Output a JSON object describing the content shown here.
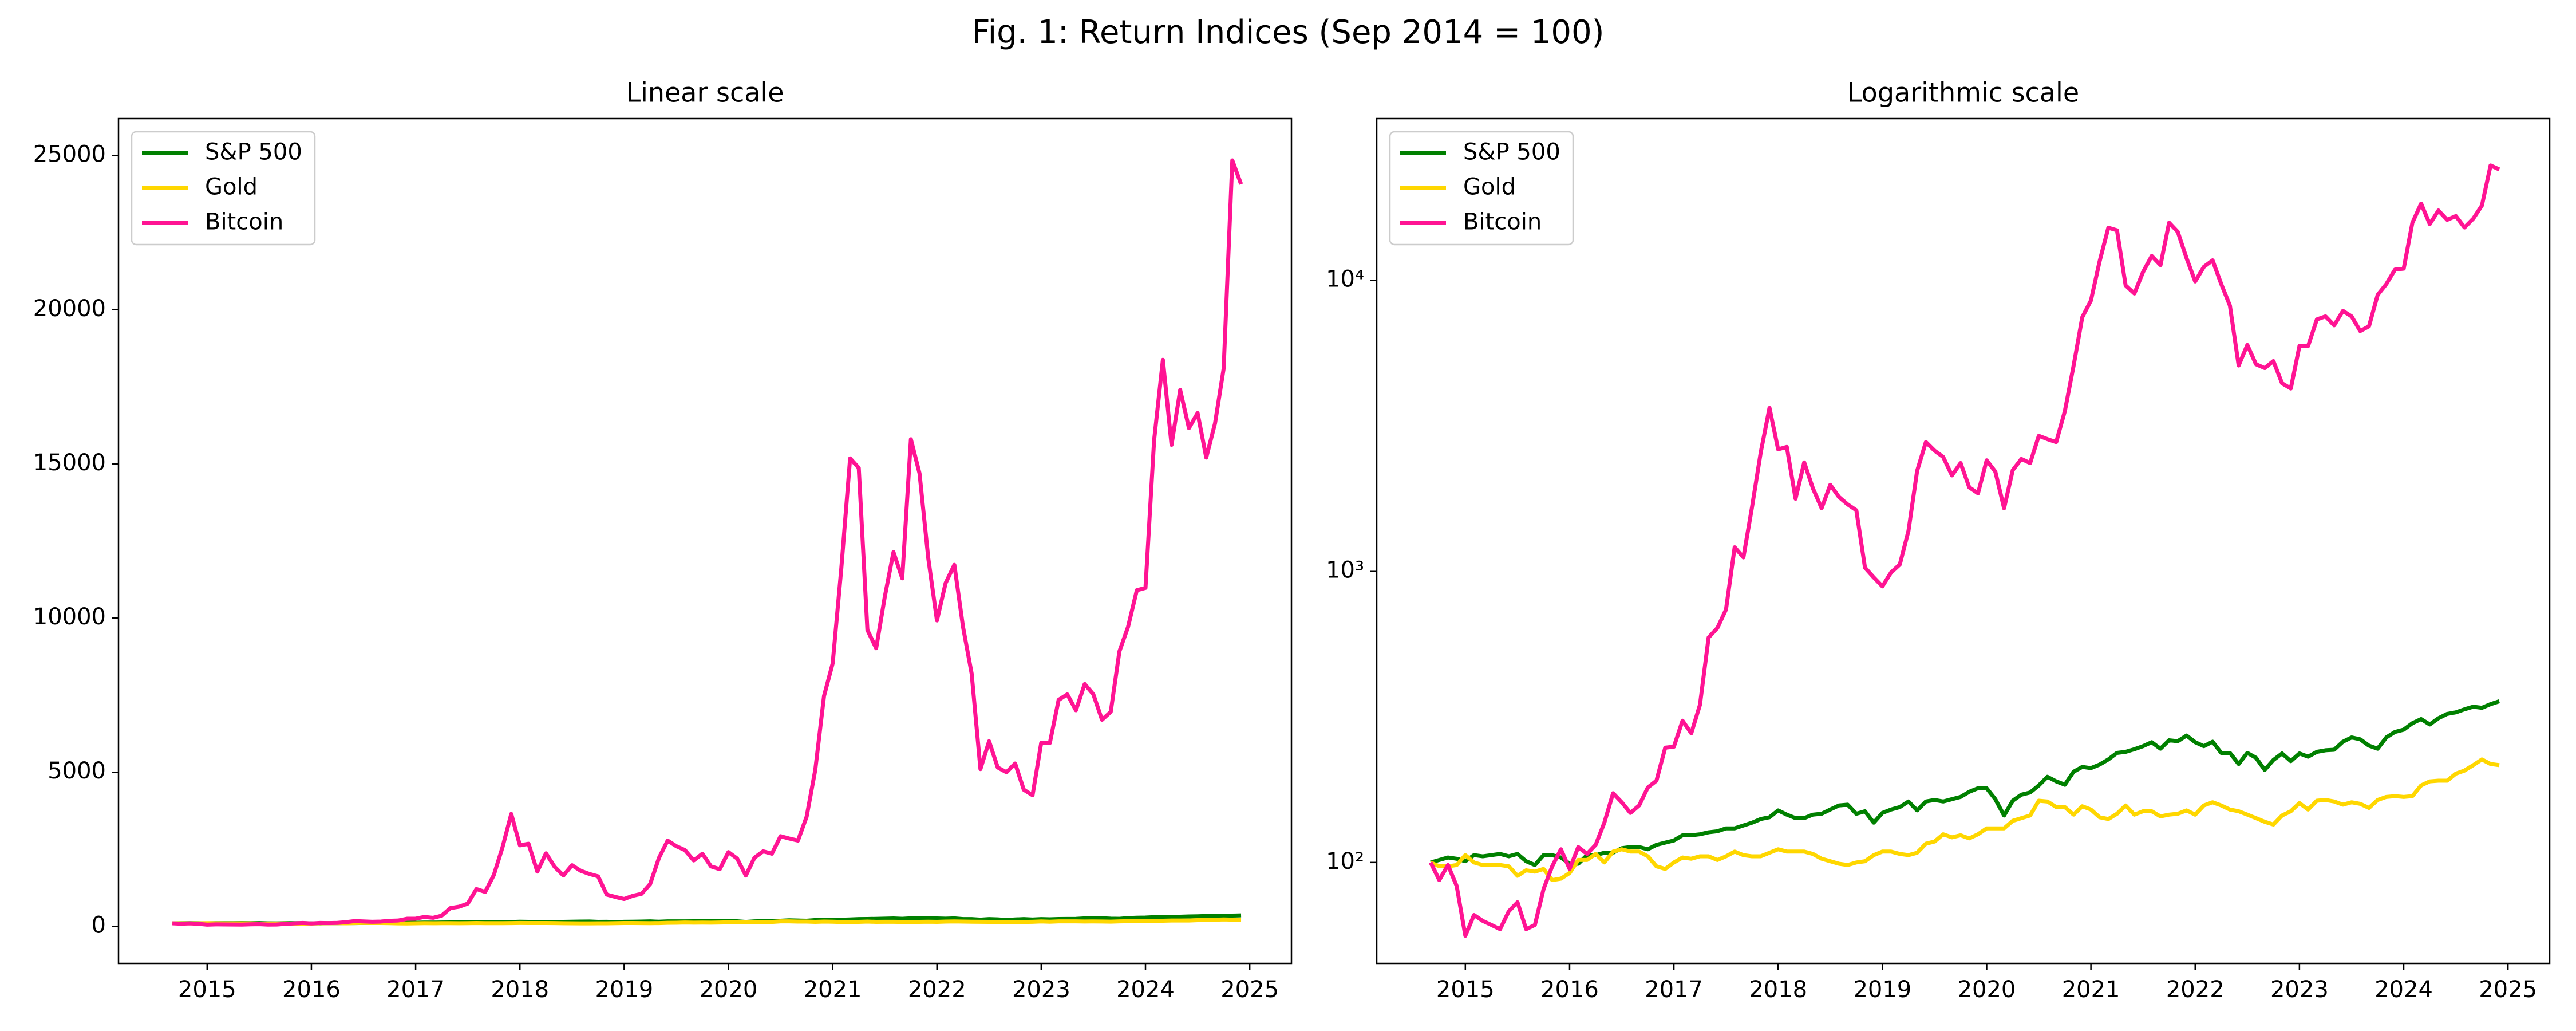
{
  "title": "Fig. 1: Return Indices (Sep 2014 = 100)",
  "chart_data": [
    {
      "type": "line",
      "title": "Linear scale",
      "log_scale": false,
      "legend": "upper left",
      "x": [
        2014.667,
        2014.75,
        2014.833,
        2014.917,
        2015,
        2015.083,
        2015.167,
        2015.25,
        2015.333,
        2015.417,
        2015.5,
        2015.583,
        2015.667,
        2015.75,
        2015.833,
        2015.917,
        2016,
        2016.083,
        2016.167,
        2016.25,
        2016.333,
        2016.417,
        2016.5,
        2016.583,
        2016.667,
        2016.75,
        2016.833,
        2016.917,
        2017,
        2017.083,
        2017.167,
        2017.25,
        2017.333,
        2017.417,
        2017.5,
        2017.583,
        2017.667,
        2017.75,
        2017.833,
        2017.917,
        2018,
        2018.083,
        2018.167,
        2018.25,
        2018.333,
        2018.417,
        2018.5,
        2018.583,
        2018.667,
        2018.75,
        2018.833,
        2018.917,
        2019,
        2019.083,
        2019.167,
        2019.25,
        2019.333,
        2019.417,
        2019.5,
        2019.583,
        2019.667,
        2019.75,
        2019.833,
        2019.917,
        2020,
        2020.083,
        2020.167,
        2020.25,
        2020.333,
        2020.417,
        2020.5,
        2020.583,
        2020.667,
        2020.75,
        2020.833,
        2020.917,
        2021,
        2021.083,
        2021.167,
        2021.25,
        2021.333,
        2021.417,
        2021.5,
        2021.583,
        2021.667,
        2021.75,
        2021.833,
        2021.917,
        2022,
        2022.083,
        2022.167,
        2022.25,
        2022.333,
        2022.417,
        2022.5,
        2022.583,
        2022.667,
        2022.75,
        2022.833,
        2022.917,
        2023,
        2023.083,
        2023.167,
        2023.25,
        2023.333,
        2023.417,
        2023.5,
        2023.583,
        2023.667,
        2023.75,
        2023.833,
        2023.917,
        2024,
        2024.083,
        2024.167,
        2024.25,
        2024.333,
        2024.417,
        2024.5,
        2024.583,
        2024.667,
        2024.75,
        2024.833,
        2024.917
      ],
      "xlim": [
        2014.15,
        2025.4
      ],
      "xticks": [
        2015,
        2016,
        2017,
        2018,
        2019,
        2020,
        2021,
        2022,
        2023,
        2024,
        2025
      ],
      "ylim": [
        -1200,
        26200
      ],
      "yticks": [
        0,
        5000,
        10000,
        15000,
        20000,
        25000
      ],
      "series": [
        {
          "name": "S&P 500",
          "color": "#008000",
          "values": [
            100,
            102,
            104,
            103,
            101,
            106,
            105,
            106,
            107,
            105,
            107,
            101,
            98,
            106,
            106,
            104,
            99,
            99,
            106,
            106,
            108,
            108,
            112,
            113,
            113,
            111,
            115,
            117,
            119,
            124,
            124,
            125,
            127,
            128,
            131,
            131,
            134,
            137,
            141,
            143,
            151,
            146,
            142,
            142,
            146,
            147,
            152,
            157,
            158,
            147,
            150,
            137,
            148,
            152,
            155,
            162,
            151,
            162,
            164,
            162,
            165,
            168,
            175,
            180,
            180,
            165,
            145,
            163,
            171,
            174,
            184,
            197,
            190,
            185,
            205,
            213,
            211,
            217,
            226,
            238,
            240,
            245,
            251,
            259,
            246,
            263,
            261,
            273,
            259,
            251,
            260,
            238,
            238,
            218,
            238,
            229,
            208,
            225,
            237,
            223,
            237,
            231,
            240,
            243,
            244,
            260,
            269,
            265,
            252,
            246,
            269,
            281,
            286,
            301,
            311,
            298,
            313,
            324,
            328,
            336,
            343,
            340,
            350,
            358
          ]
        },
        {
          "name": "Gold",
          "color": "#FFD700",
          "values": [
            100,
            97,
            97,
            98,
            106,
            100,
            98,
            98,
            98,
            97,
            90,
            94,
            93,
            95,
            87,
            88,
            92,
            102,
            102,
            107,
            100,
            109,
            111,
            109,
            109,
            105,
            97,
            95,
            100,
            104,
            103,
            105,
            105,
            102,
            105,
            109,
            106,
            105,
            105,
            108,
            111,
            109,
            109,
            109,
            107,
            103,
            101,
            99,
            98,
            100,
            101,
            106,
            109,
            109,
            107,
            106,
            108,
            116,
            118,
            125,
            122,
            124,
            121,
            125,
            131,
            131,
            131,
            139,
            142,
            145,
            163,
            162,
            155,
            155,
            146,
            156,
            152,
            143,
            141,
            147,
            157,
            146,
            150,
            150,
            144,
            146,
            147,
            151,
            146,
            157,
            161,
            157,
            152,
            150,
            146,
            142,
            138,
            135,
            145,
            150,
            160,
            152,
            163,
            164,
            162,
            158,
            161,
            159,
            154,
            164,
            168,
            169,
            168,
            169,
            184,
            190,
            191,
            191,
            202,
            207,
            216,
            226,
            218,
            216
          ]
        },
        {
          "name": "Bitcoin",
          "color": "#FF1493",
          "values": [
            100,
            87,
            98,
            83,
            56,
            66,
            63,
            61,
            59,
            68,
            73,
            59,
            61,
            81,
            97,
            111,
            95,
            113,
            107,
            115,
            137,
            173,
            161,
            148,
            157,
            181,
            191,
            248,
            250,
            307,
            278,
            348,
            593,
            639,
            740,
            1211,
            1118,
            1668,
            2564,
            3647,
            2629,
            2680,
            1778,
            2371,
            1933,
            1650,
            1985,
            1804,
            1700,
            1623,
            1031,
            954,
            889,
            992,
            1057,
            1379,
            2216,
            2784,
            2603,
            2474,
            2139,
            2358,
            1946,
            1856,
            2410,
            2204,
            1649,
            2229,
            2436,
            2358,
            2925,
            2850,
            2784,
            3557,
            5077,
            7474,
            8531,
            11624,
            15180,
            14871,
            9613,
            9021,
            10696,
            12139,
            11289,
            15799,
            14691,
            11933,
            9923,
            11134,
            11727,
            9716,
            8196,
            5103,
            6005,
            5155,
            5000,
            5284,
            4433,
            4253,
            5954,
            5954,
            7345,
            7526,
            7010,
            7861,
            7526,
            6701,
            6959,
            8918,
            9716,
            10902,
            10979,
            15773,
            18376,
            15619,
            17397,
            16160,
            16649,
            15206,
            16314,
            18093,
            24845,
            24072
          ]
        }
      ]
    },
    {
      "type": "line",
      "title": "Logarithmic scale",
      "log_scale": true,
      "legend": "upper left",
      "x": [
        2014.667,
        2014.75,
        2014.833,
        2014.917,
        2015,
        2015.083,
        2015.167,
        2015.25,
        2015.333,
        2015.417,
        2015.5,
        2015.583,
        2015.667,
        2015.75,
        2015.833,
        2015.917,
        2016,
        2016.083,
        2016.167,
        2016.25,
        2016.333,
        2016.417,
        2016.5,
        2016.583,
        2016.667,
        2016.75,
        2016.833,
        2016.917,
        2017,
        2017.083,
        2017.167,
        2017.25,
        2017.333,
        2017.417,
        2017.5,
        2017.583,
        2017.667,
        2017.75,
        2017.833,
        2017.917,
        2018,
        2018.083,
        2018.167,
        2018.25,
        2018.333,
        2018.417,
        2018.5,
        2018.583,
        2018.667,
        2018.75,
        2018.833,
        2018.917,
        2019,
        2019.083,
        2019.167,
        2019.25,
        2019.333,
        2019.417,
        2019.5,
        2019.583,
        2019.667,
        2019.75,
        2019.833,
        2019.917,
        2020,
        2020.083,
        2020.167,
        2020.25,
        2020.333,
        2020.417,
        2020.5,
        2020.583,
        2020.667,
        2020.75,
        2020.833,
        2020.917,
        2021,
        2021.083,
        2021.167,
        2021.25,
        2021.333,
        2021.417,
        2021.5,
        2021.583,
        2021.667,
        2021.75,
        2021.833,
        2021.917,
        2022,
        2022.083,
        2022.167,
        2022.25,
        2022.333,
        2022.417,
        2022.5,
        2022.583,
        2022.667,
        2022.75,
        2022.833,
        2022.917,
        2023,
        2023.083,
        2023.167,
        2023.25,
        2023.333,
        2023.417,
        2023.5,
        2023.583,
        2023.667,
        2023.75,
        2023.833,
        2023.917,
        2024,
        2024.083,
        2024.167,
        2024.25,
        2024.333,
        2024.417,
        2024.5,
        2024.583,
        2024.667,
        2024.75,
        2024.833,
        2024.917
      ],
      "xlim": [
        2014.15,
        2025.4
      ],
      "xticks": [
        2015,
        2016,
        2017,
        2018,
        2019,
        2020,
        2021,
        2022,
        2023,
        2024,
        2025
      ],
      "ylim": [
        45,
        36000
      ],
      "yticks": [
        {
          "value": 100,
          "label": "10²"
        },
        {
          "value": 1000,
          "label": "10³"
        },
        {
          "value": 10000,
          "label": "10⁴"
        }
      ],
      "series": [
        {
          "name": "S&P 500",
          "color": "#008000",
          "values": [
            100,
            102,
            104,
            103,
            101,
            106,
            105,
            106,
            107,
            105,
            107,
            101,
            98,
            106,
            106,
            104,
            99,
            99,
            106,
            106,
            108,
            108,
            112,
            113,
            113,
            111,
            115,
            117,
            119,
            124,
            124,
            125,
            127,
            128,
            131,
            131,
            134,
            137,
            141,
            143,
            151,
            146,
            142,
            142,
            146,
            147,
            152,
            157,
            158,
            147,
            150,
            137,
            148,
            152,
            155,
            162,
            151,
            162,
            164,
            162,
            165,
            168,
            175,
            180,
            180,
            165,
            145,
            163,
            171,
            174,
            184,
            197,
            190,
            185,
            205,
            213,
            211,
            217,
            226,
            238,
            240,
            245,
            251,
            259,
            246,
            263,
            261,
            273,
            259,
            251,
            260,
            238,
            238,
            218,
            238,
            229,
            208,
            225,
            237,
            223,
            237,
            231,
            240,
            243,
            244,
            260,
            269,
            265,
            252,
            246,
            269,
            281,
            286,
            301,
            311,
            298,
            313,
            324,
            328,
            336,
            343,
            340,
            350,
            358
          ]
        },
        {
          "name": "Gold",
          "color": "#FFD700",
          "values": [
            100,
            97,
            97,
            98,
            106,
            100,
            98,
            98,
            98,
            97,
            90,
            94,
            93,
            95,
            87,
            88,
            92,
            102,
            102,
            107,
            100,
            109,
            111,
            109,
            109,
            105,
            97,
            95,
            100,
            104,
            103,
            105,
            105,
            102,
            105,
            109,
            106,
            105,
            105,
            108,
            111,
            109,
            109,
            109,
            107,
            103,
            101,
            99,
            98,
            100,
            101,
            106,
            109,
            109,
            107,
            106,
            108,
            116,
            118,
            125,
            122,
            124,
            121,
            125,
            131,
            131,
            131,
            139,
            142,
            145,
            163,
            162,
            155,
            155,
            146,
            156,
            152,
            143,
            141,
            147,
            157,
            146,
            150,
            150,
            144,
            146,
            147,
            151,
            146,
            157,
            161,
            157,
            152,
            150,
            146,
            142,
            138,
            135,
            145,
            150,
            160,
            152,
            163,
            164,
            162,
            158,
            161,
            159,
            154,
            164,
            168,
            169,
            168,
            169,
            184,
            190,
            191,
            191,
            202,
            207,
            216,
            226,
            218,
            216
          ]
        },
        {
          "name": "Bitcoin",
          "color": "#FF1493",
          "values": [
            100,
            87,
            98,
            83,
            56,
            66,
            63,
            61,
            59,
            68,
            73,
            59,
            61,
            81,
            97,
            111,
            95,
            113,
            107,
            115,
            137,
            173,
            161,
            148,
            157,
            181,
            191,
            248,
            250,
            307,
            278,
            348,
            593,
            639,
            740,
            1211,
            1118,
            1668,
            2564,
            3647,
            2629,
            2680,
            1778,
            2371,
            1933,
            1650,
            1985,
            1804,
            1700,
            1623,
            1031,
            954,
            889,
            992,
            1057,
            1379,
            2216,
            2784,
            2603,
            2474,
            2139,
            2358,
            1946,
            1856,
            2410,
            2204,
            1649,
            2229,
            2436,
            2358,
            2925,
            2850,
            2784,
            3557,
            5077,
            7474,
            8531,
            11624,
            15180,
            14871,
            9613,
            9021,
            10696,
            12139,
            11289,
            15799,
            14691,
            11933,
            9923,
            11134,
            11727,
            9716,
            8196,
            5103,
            6005,
            5155,
            5000,
            5284,
            4433,
            4253,
            5954,
            5954,
            7345,
            7526,
            7010,
            7861,
            7526,
            6701,
            6959,
            8918,
            9716,
            10902,
            10979,
            15773,
            18376,
            15619,
            17397,
            16160,
            16649,
            15206,
            16314,
            18093,
            24845,
            24072
          ]
        }
      ]
    }
  ]
}
